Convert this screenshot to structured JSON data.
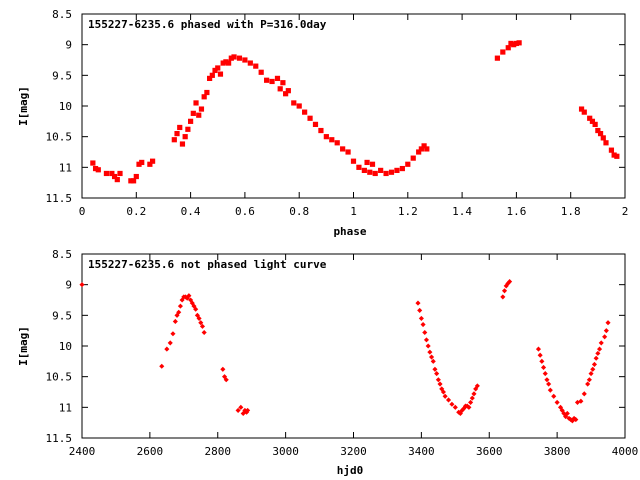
{
  "chart_data": [
    {
      "type": "scatter",
      "title": "155227-6235.6 phased with P=316.0day",
      "xlabel": "phase",
      "ylabel": "I[mag]",
      "xlim": [
        0,
        2
      ],
      "ylim": [
        11.5,
        8.5
      ],
      "y_inverted": true,
      "grid": false,
      "xticks": [
        "0",
        "0.2",
        "0.4",
        "0.6",
        "0.8",
        "1",
        "1.2",
        "1.4",
        "1.6",
        "1.8",
        "2"
      ],
      "yticks": [
        "8.5",
        "9",
        "9.5",
        "10",
        "10.5",
        "11",
        "11.5"
      ],
      "marker_color": "#ff0000",
      "series": [
        {
          "x": [
            0.04,
            0.05,
            0.06,
            0.09,
            0.11,
            0.12,
            0.13,
            0.14,
            0.18,
            0.19,
            0.2,
            0.21,
            0.22,
            0.25,
            0.26,
            0.34,
            0.35,
            0.36,
            0.37,
            0.38,
            0.39,
            0.4,
            0.41,
            0.42,
            0.43,
            0.44,
            0.45,
            0.46,
            0.47,
            0.48,
            0.49,
            0.5,
            0.51,
            0.52,
            0.53,
            0.54,
            0.55,
            0.56,
            0.58,
            0.6,
            0.62,
            0.64,
            0.66,
            0.68,
            0.7,
            0.72,
            0.73,
            0.74,
            0.75,
            0.76,
            0.78,
            0.8,
            0.82,
            0.84,
            0.86,
            0.88,
            0.9,
            0.92,
            0.94,
            0.96,
            0.98,
            1.0,
            1.02,
            1.04,
            1.05,
            1.06,
            1.07,
            1.08,
            1.1,
            1.12,
            1.14,
            1.16,
            1.18,
            1.2,
            1.22,
            1.24,
            1.25,
            1.26,
            1.27,
            1.53,
            1.55,
            1.57,
            1.58,
            1.59,
            1.6,
            1.61,
            1.84,
            1.85,
            1.87,
            1.88,
            1.89,
            1.9,
            1.91,
            1.92,
            1.93,
            1.95,
            1.96,
            1.97
          ],
          "y": [
            10.93,
            11.02,
            11.04,
            11.1,
            11.1,
            11.15,
            11.2,
            11.1,
            11.22,
            11.22,
            11.15,
            10.95,
            10.92,
            10.95,
            10.9,
            10.55,
            10.45,
            10.35,
            10.62,
            10.5,
            10.38,
            10.25,
            10.12,
            9.95,
            10.15,
            10.05,
            9.85,
            9.78,
            9.55,
            9.5,
            9.42,
            9.38,
            9.48,
            9.3,
            9.28,
            9.3,
            9.22,
            9.2,
            9.22,
            9.25,
            9.3,
            9.35,
            9.45,
            9.58,
            9.6,
            9.55,
            9.72,
            9.62,
            9.8,
            9.75,
            9.95,
            10.0,
            10.1,
            10.2,
            10.3,
            10.4,
            10.5,
            10.55,
            10.6,
            10.7,
            10.75,
            10.9,
            11.0,
            11.05,
            10.92,
            11.08,
            10.95,
            11.1,
            11.05,
            11.1,
            11.08,
            11.05,
            11.02,
            10.95,
            10.85,
            10.75,
            10.7,
            10.65,
            10.7,
            9.22,
            9.12,
            9.05,
            8.98,
            9.0,
            8.98,
            8.97,
            10.05,
            10.1,
            10.2,
            10.25,
            10.3,
            10.4,
            10.45,
            10.52,
            10.6,
            10.72,
            10.8,
            10.82
          ]
        }
      ]
    },
    {
      "type": "scatter",
      "title": "155227-6235.6 not phased light curve",
      "xlabel": "hjd0",
      "ylabel": "I[mag]",
      "xlim": [
        2400,
        4000
      ],
      "ylim": [
        11.5,
        8.5
      ],
      "y_inverted": true,
      "grid": false,
      "xticks": [
        "2400",
        "2600",
        "2800",
        "3000",
        "3200",
        "3400",
        "3600",
        "3800",
        "4000"
      ],
      "yticks": [
        "8.5",
        "9",
        "9.5",
        "10",
        "10.5",
        "11",
        "11.5"
      ],
      "marker_color": "#ff0000",
      "series": [
        {
          "x": [
            2400,
            2635,
            2650,
            2660,
            2668,
            2675,
            2680,
            2685,
            2690,
            2695,
            2700,
            2705,
            2710,
            2715,
            2720,
            2725,
            2730,
            2735,
            2740,
            2745,
            2750,
            2755,
            2760,
            2815,
            2820,
            2825,
            2860,
            2868,
            2875,
            2880,
            2885,
            2888,
            3390,
            3395,
            3400,
            3405,
            3410,
            3415,
            3420,
            3425,
            3430,
            3435,
            3440,
            3445,
            3450,
            3455,
            3460,
            3465,
            3470,
            3480,
            3490,
            3500,
            3510,
            3515,
            3520,
            3525,
            3530,
            3535,
            3540,
            3545,
            3550,
            3555,
            3560,
            3565,
            3640,
            3645,
            3650,
            3655,
            3660,
            3745,
            3750,
            3755,
            3760,
            3765,
            3770,
            3775,
            3780,
            3790,
            3800,
            3810,
            3815,
            3820,
            3825,
            3830,
            3835,
            3840,
            3845,
            3850,
            3855,
            3860,
            3870,
            3880,
            3890,
            3895,
            3900,
            3905,
            3910,
            3915,
            3920,
            3925,
            3930,
            3940,
            3945,
            3950
          ],
          "y": [
            9.0,
            10.33,
            10.05,
            9.95,
            9.8,
            9.6,
            9.5,
            9.45,
            9.35,
            9.25,
            9.2,
            9.2,
            9.22,
            9.18,
            9.25,
            9.3,
            9.35,
            9.4,
            9.5,
            9.55,
            9.62,
            9.68,
            9.78,
            10.38,
            10.5,
            10.55,
            11.05,
            11.0,
            11.1,
            11.05,
            11.08,
            11.05,
            9.3,
            9.42,
            9.55,
            9.65,
            9.78,
            9.9,
            10.0,
            10.1,
            10.18,
            10.25,
            10.38,
            10.45,
            10.55,
            10.62,
            10.7,
            10.75,
            10.82,
            10.88,
            10.95,
            11.0,
            11.08,
            11.1,
            11.05,
            11.02,
            10.98,
            10.98,
            11.0,
            10.92,
            10.85,
            10.78,
            10.7,
            10.65,
            9.2,
            9.1,
            9.02,
            8.98,
            8.95,
            10.05,
            10.15,
            10.25,
            10.35,
            10.45,
            10.55,
            10.62,
            10.72,
            10.82,
            10.92,
            11.0,
            11.05,
            11.1,
            11.15,
            11.1,
            11.18,
            11.2,
            11.22,
            11.18,
            11.2,
            10.92,
            10.9,
            10.78,
            10.62,
            10.55,
            10.45,
            10.38,
            10.3,
            10.2,
            10.12,
            10.05,
            9.95,
            9.85,
            9.75,
            9.62
          ]
        }
      ]
    }
  ]
}
